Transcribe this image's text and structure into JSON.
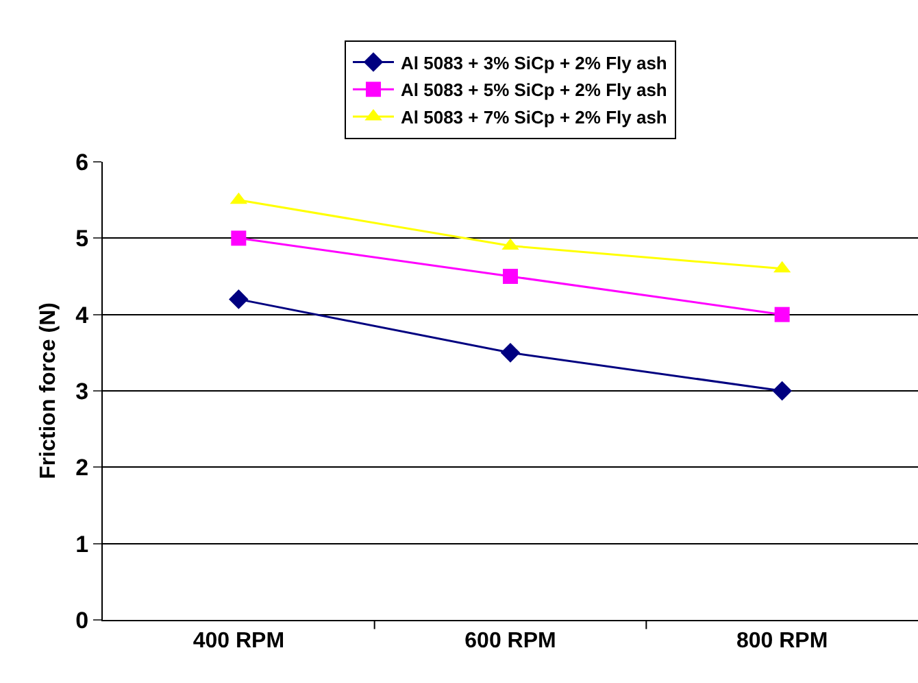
{
  "chart_data": {
    "type": "line",
    "ylabel": "Friction force (N)",
    "categories": [
      "400 RPM",
      "600 RPM",
      "800 RPM"
    ],
    "series": [
      {
        "name": "Al 5083 + 3% SiCp + 2% Fly ash",
        "color": "#000080",
        "values": [
          4.2,
          3.5,
          3.0
        ],
        "marker": "diamond"
      },
      {
        "name": "Al 5083 + 5% SiCp + 2% Fly ash",
        "color": "#ff00ff",
        "values": [
          5.0,
          4.5,
          4.0
        ],
        "marker": "square"
      },
      {
        "name": "Al 5083 + 7% SiCp + 2% Fly ash",
        "color": "#ffff00",
        "values": [
          5.5,
          4.9,
          4.6
        ],
        "marker": "triangle"
      }
    ],
    "ylim": [
      0,
      6
    ],
    "yticks": [
      0,
      1,
      2,
      3,
      4,
      5,
      6
    ],
    "grid": "y",
    "legend": "top"
  }
}
